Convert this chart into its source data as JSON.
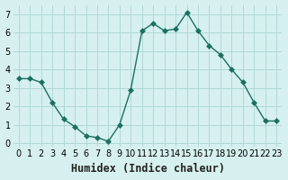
{
  "x": [
    0,
    1,
    2,
    3,
    4,
    5,
    6,
    7,
    8,
    9,
    10,
    11,
    12,
    13,
    14,
    15,
    16,
    17,
    18,
    19,
    20,
    21,
    22,
    23
  ],
  "y": [
    3.5,
    3.5,
    3.3,
    2.2,
    1.3,
    0.9,
    0.4,
    0.3,
    0.1,
    1.0,
    2.9,
    6.1,
    6.5,
    6.1,
    6.2,
    7.1,
    6.1,
    5.3,
    4.8,
    4.0,
    3.3,
    2.2,
    1.2,
    1.2
  ],
  "line_color": "#1a7060",
  "marker": "D",
  "marker_size": 3,
  "bg_color": "#d6f0ef",
  "grid_color": "#b0d8d5",
  "xlabel": "Humidex (Indice chaleur)",
  "xlim": [
    -0.5,
    23.5
  ],
  "ylim": [
    -0.2,
    7.5
  ],
  "yticks": [
    0,
    1,
    2,
    3,
    4,
    5,
    6,
    7
  ],
  "xticks": [
    0,
    1,
    2,
    3,
    4,
    5,
    6,
    7,
    8,
    9,
    10,
    11,
    12,
    13,
    14,
    15,
    16,
    17,
    18,
    19,
    20,
    21,
    22,
    23
  ],
  "tick_fontsize": 7,
  "xlabel_fontsize": 8.5,
  "xlabel_fontweight": "bold"
}
